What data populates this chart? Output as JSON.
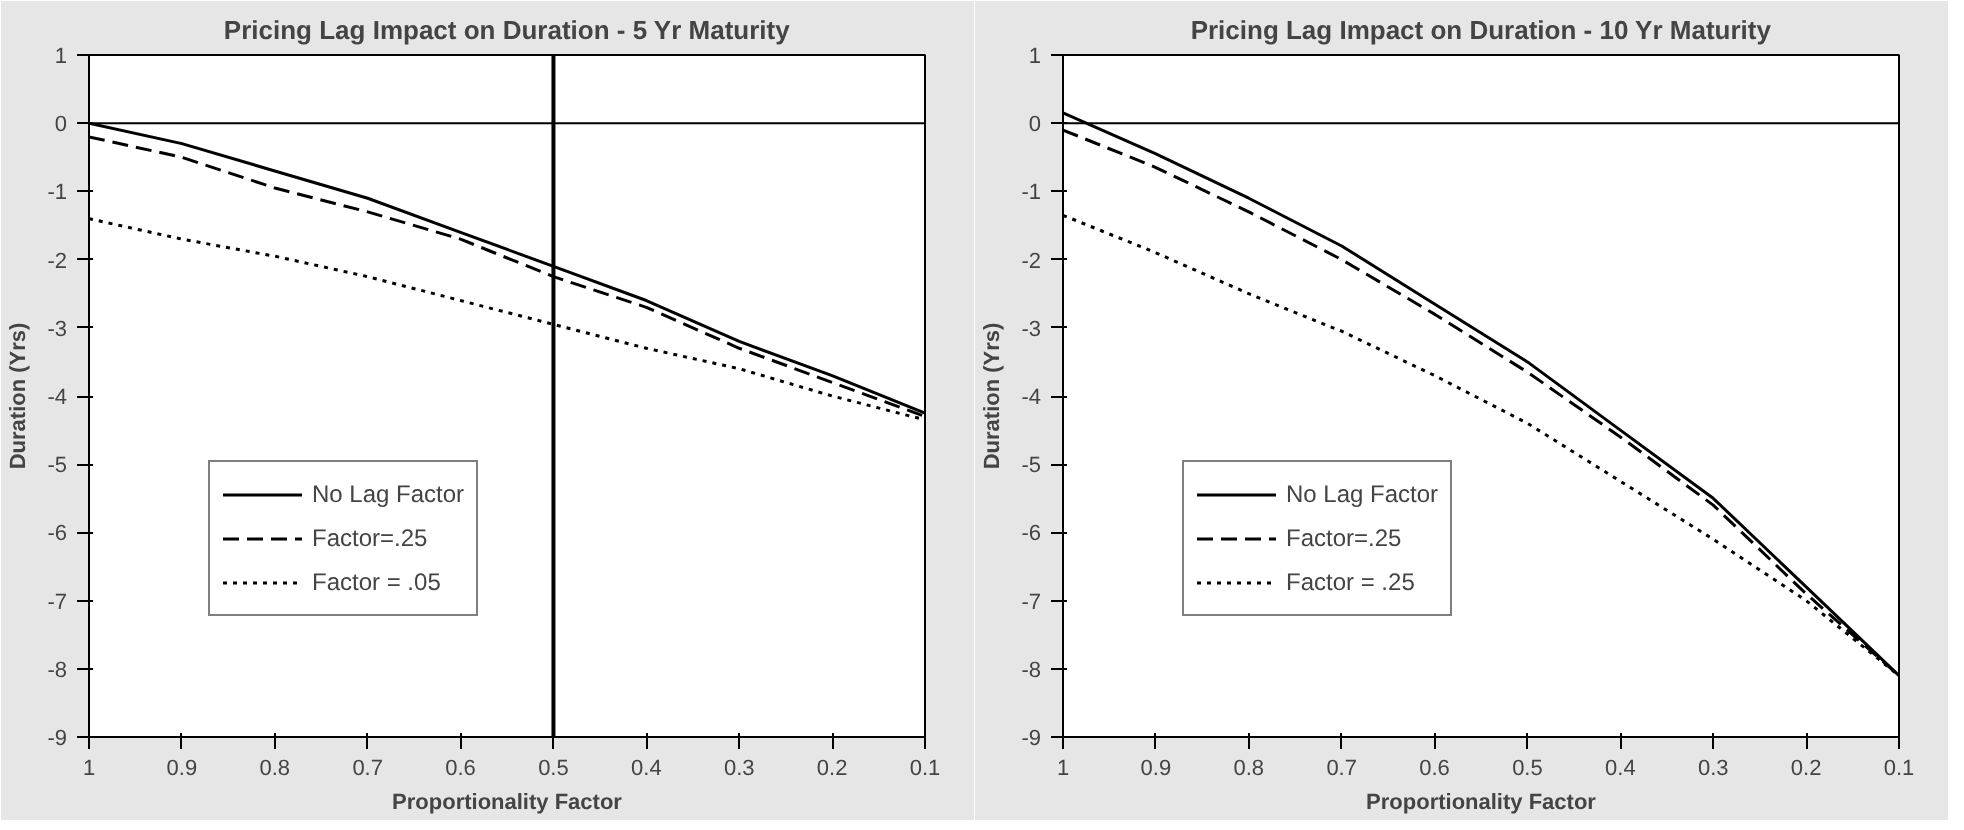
{
  "chart_data": [
    {
      "type": "line",
      "title": "Pricing Lag Impact on Duration - 5 Yr Maturity",
      "xlabel": "Proportionality Factor",
      "ylabel": "Duration (Yrs)",
      "x": [
        1,
        0.9,
        0.8,
        0.7,
        0.6,
        0.5,
        0.4,
        0.3,
        0.2,
        0.1
      ],
      "series": [
        {
          "name": "No Lag Factor",
          "color": "#000000",
          "line_style": "solid",
          "values": [
            0,
            -0.3,
            -0.7,
            -1.1,
            -1.6,
            -2.1,
            -2.6,
            -3.2,
            -3.7,
            -4.25
          ]
        },
        {
          "name": "Factor=.25",
          "color": "#000000",
          "line_style": "dashed",
          "values": [
            -0.2,
            -0.5,
            -0.95,
            -1.3,
            -1.7,
            -2.25,
            -2.7,
            -3.3,
            -3.8,
            -4.3
          ]
        },
        {
          "name": "Factor = .05",
          "color": "#000000",
          "line_style": "dotted",
          "values": [
            -1.4,
            -1.7,
            -1.95,
            -2.25,
            -2.6,
            -2.95,
            -3.3,
            -3.6,
            -4.0,
            -4.35
          ]
        }
      ],
      "xlim": [
        1,
        0.1
      ],
      "xticks": [
        1,
        0.9,
        0.8,
        0.7,
        0.6,
        0.5,
        0.4,
        0.3,
        0.2,
        0.1
      ],
      "ylim": [
        -9,
        1
      ],
      "yticks": [
        -9,
        -8,
        -7,
        -6,
        -5,
        -4,
        -3,
        -2,
        -1,
        0,
        1
      ],
      "ref_lines": [
        {
          "axis": "x",
          "value": 0.5,
          "color": "#000000"
        },
        {
          "axis": "y",
          "value": 0,
          "color": "#000000"
        }
      ],
      "grid": false,
      "legend": "bottom left",
      "marker": "none"
    },
    {
      "type": "line",
      "title": "Pricing Lag Impact on Duration - 10 Yr Maturity",
      "xlabel": "Proportionality Factor",
      "ylabel": "Duration (Yrs)",
      "x": [
        1,
        0.9,
        0.8,
        0.7,
        0.6,
        0.5,
        0.4,
        0.3,
        0.2,
        0.1
      ],
      "series": [
        {
          "name": "No Lag Factor",
          "color": "#000000",
          "line_style": "solid",
          "values": [
            0.15,
            -0.45,
            -1.1,
            -1.8,
            -2.65,
            -3.5,
            -4.5,
            -5.5,
            -6.8,
            -8.1
          ]
        },
        {
          "name": "Factor=.25",
          "color": "#000000",
          "line_style": "dashed",
          "values": [
            -0.1,
            -0.65,
            -1.3,
            -2.0,
            -2.8,
            -3.65,
            -4.6,
            -5.6,
            -6.9,
            -8.1
          ]
        },
        {
          "name": "Factor = .25",
          "color": "#000000",
          "line_style": "dotted",
          "values": [
            -1.35,
            -1.9,
            -2.5,
            -3.05,
            -3.7,
            -4.4,
            -5.25,
            -6.1,
            -7.0,
            -8.1
          ]
        }
      ],
      "xlim": [
        1,
        0.1
      ],
      "xticks": [
        1,
        0.9,
        0.8,
        0.7,
        0.6,
        0.5,
        0.4,
        0.3,
        0.2,
        0.1
      ],
      "ylim": [
        -9,
        1
      ],
      "yticks": [
        -9,
        -8,
        -7,
        -6,
        -5,
        -4,
        -3,
        -2,
        -1,
        0,
        1
      ],
      "ref_lines": [
        {
          "axis": "y",
          "value": 0,
          "color": "#000000"
        }
      ],
      "grid": false,
      "legend": "bottom left",
      "marker": "none"
    }
  ]
}
